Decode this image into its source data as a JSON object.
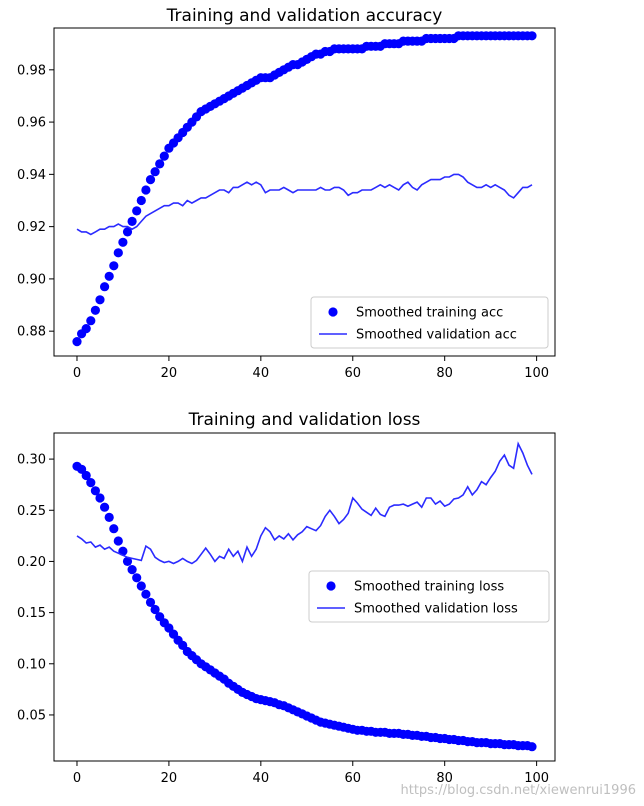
{
  "watermark": "https://blog.csdn.net/xiewenrui1996",
  "colors": {
    "points": "#0000ff",
    "line": "#2b2bff",
    "axis": "#000000",
    "legend_border": "#cccccc"
  },
  "chart_data": [
    {
      "type": "scatter+line",
      "title": "Training and validation accuracy",
      "xlabel": "",
      "ylabel": "",
      "xlim": [
        -5,
        104
      ],
      "ylim": [
        0.8705,
        0.996
      ],
      "xticks": [
        0,
        20,
        40,
        60,
        80,
        100
      ],
      "xtick_labels": [
        "0",
        "20",
        "40",
        "60",
        "80",
        "100"
      ],
      "yticks": [
        0.88,
        0.9,
        0.92,
        0.94,
        0.96,
        0.98
      ],
      "ytick_labels": [
        "0.88",
        "0.90",
        "0.92",
        "0.94",
        "0.96",
        "0.98"
      ],
      "legend": "lower right",
      "series": [
        {
          "name": "Smoothed training acc",
          "kind": "points",
          "x": [
            0,
            1,
            2,
            3,
            4,
            5,
            6,
            7,
            8,
            9,
            10,
            11,
            12,
            13,
            14,
            15,
            16,
            17,
            18,
            19,
            20,
            21,
            22,
            23,
            24,
            25,
            26,
            27,
            28,
            29,
            30,
            31,
            32,
            33,
            34,
            35,
            36,
            37,
            38,
            39,
            40,
            41,
            42,
            43,
            44,
            45,
            46,
            47,
            48,
            49,
            50,
            51,
            52,
            53,
            54,
            55,
            56,
            57,
            58,
            59,
            60,
            61,
            62,
            63,
            64,
            65,
            66,
            67,
            68,
            69,
            70,
            71,
            72,
            73,
            74,
            75,
            76,
            77,
            78,
            79,
            80,
            81,
            82,
            83,
            84,
            85,
            86,
            87,
            88,
            89,
            90,
            91,
            92,
            93,
            94,
            95,
            96,
            97,
            98,
            99
          ],
          "y": [
            0.876,
            0.879,
            0.881,
            0.884,
            0.888,
            0.892,
            0.897,
            0.901,
            0.905,
            0.91,
            0.914,
            0.918,
            0.922,
            0.926,
            0.93,
            0.934,
            0.938,
            0.941,
            0.944,
            0.947,
            0.95,
            0.952,
            0.954,
            0.956,
            0.958,
            0.96,
            0.962,
            0.964,
            0.965,
            0.966,
            0.967,
            0.968,
            0.969,
            0.97,
            0.971,
            0.972,
            0.973,
            0.974,
            0.975,
            0.976,
            0.977,
            0.977,
            0.977,
            0.978,
            0.979,
            0.98,
            0.981,
            0.982,
            0.982,
            0.983,
            0.984,
            0.985,
            0.986,
            0.986,
            0.987,
            0.987,
            0.988,
            0.988,
            0.988,
            0.988,
            0.988,
            0.988,
            0.988,
            0.989,
            0.989,
            0.989,
            0.989,
            0.99,
            0.99,
            0.99,
            0.99,
            0.991,
            0.991,
            0.991,
            0.991,
            0.991,
            0.992,
            0.992,
            0.992,
            0.992,
            0.992,
            0.992,
            0.992,
            0.993,
            0.993,
            0.993,
            0.993,
            0.993,
            0.993,
            0.993,
            0.993,
            0.993,
            0.993,
            0.993,
            0.993,
            0.993,
            0.993,
            0.993,
            0.993,
            0.993
          ]
        },
        {
          "name": "Smoothed validation acc",
          "kind": "line",
          "x": [
            0,
            1,
            2,
            3,
            4,
            5,
            6,
            7,
            8,
            9,
            10,
            11,
            12,
            13,
            14,
            15,
            16,
            17,
            18,
            19,
            20,
            21,
            22,
            23,
            24,
            25,
            26,
            27,
            28,
            29,
            30,
            31,
            32,
            33,
            34,
            35,
            36,
            37,
            38,
            39,
            40,
            41,
            42,
            43,
            44,
            45,
            46,
            47,
            48,
            49,
            50,
            51,
            52,
            53,
            54,
            55,
            56,
            57,
            58,
            59,
            60,
            61,
            62,
            63,
            64,
            65,
            66,
            67,
            68,
            69,
            70,
            71,
            72,
            73,
            74,
            75,
            76,
            77,
            78,
            79,
            80,
            81,
            82,
            83,
            84,
            85,
            86,
            87,
            88,
            89,
            90,
            91,
            92,
            93,
            94,
            95,
            96,
            97,
            98,
            99
          ],
          "y": [
            0.919,
            0.918,
            0.918,
            0.917,
            0.918,
            0.919,
            0.919,
            0.92,
            0.92,
            0.921,
            0.92,
            0.92,
            0.919,
            0.92,
            0.922,
            0.924,
            0.925,
            0.926,
            0.927,
            0.928,
            0.928,
            0.929,
            0.929,
            0.928,
            0.93,
            0.929,
            0.93,
            0.931,
            0.931,
            0.932,
            0.933,
            0.934,
            0.934,
            0.933,
            0.935,
            0.935,
            0.936,
            0.937,
            0.936,
            0.937,
            0.936,
            0.933,
            0.934,
            0.934,
            0.934,
            0.935,
            0.934,
            0.933,
            0.934,
            0.934,
            0.934,
            0.934,
            0.934,
            0.935,
            0.934,
            0.934,
            0.935,
            0.935,
            0.934,
            0.932,
            0.933,
            0.933,
            0.934,
            0.934,
            0.934,
            0.935,
            0.936,
            0.935,
            0.936,
            0.935,
            0.934,
            0.936,
            0.937,
            0.935,
            0.934,
            0.936,
            0.937,
            0.938,
            0.938,
            0.938,
            0.939,
            0.939,
            0.94,
            0.94,
            0.939,
            0.937,
            0.936,
            0.935,
            0.935,
            0.936,
            0.935,
            0.936,
            0.935,
            0.934,
            0.932,
            0.931,
            0.933,
            0.935,
            0.935,
            0.936
          ]
        }
      ]
    },
    {
      "type": "scatter+line",
      "title": "Training and validation loss",
      "xlabel": "",
      "ylabel": "",
      "xlim": [
        -5,
        104
      ],
      "ylim": [
        0.005,
        0.3255
      ],
      "xticks": [
        0,
        20,
        40,
        60,
        80,
        100
      ],
      "xtick_labels": [
        "0",
        "20",
        "40",
        "60",
        "80",
        "100"
      ],
      "yticks": [
        0.05,
        0.1,
        0.15,
        0.2,
        0.25,
        0.3
      ],
      "ytick_labels": [
        "0.05",
        "0.10",
        "0.15",
        "0.20",
        "0.25",
        "0.30"
      ],
      "legend": "center right",
      "series": [
        {
          "name": "Smoothed training loss",
          "kind": "points",
          "x": [
            0,
            1,
            2,
            3,
            4,
            5,
            6,
            7,
            8,
            9,
            10,
            11,
            12,
            13,
            14,
            15,
            16,
            17,
            18,
            19,
            20,
            21,
            22,
            23,
            24,
            25,
            26,
            27,
            28,
            29,
            30,
            31,
            32,
            33,
            34,
            35,
            36,
            37,
            38,
            39,
            40,
            41,
            42,
            43,
            44,
            45,
            46,
            47,
            48,
            49,
            50,
            51,
            52,
            53,
            54,
            55,
            56,
            57,
            58,
            59,
            60,
            61,
            62,
            63,
            64,
            65,
            66,
            67,
            68,
            69,
            70,
            71,
            72,
            73,
            74,
            75,
            76,
            77,
            78,
            79,
            80,
            81,
            82,
            83,
            84,
            85,
            86,
            87,
            88,
            89,
            90,
            91,
            92,
            93,
            94,
            95,
            96,
            97,
            98,
            99
          ],
          "y": [
            0.293,
            0.29,
            0.284,
            0.277,
            0.269,
            0.262,
            0.253,
            0.243,
            0.232,
            0.22,
            0.21,
            0.2,
            0.192,
            0.184,
            0.176,
            0.168,
            0.16,
            0.153,
            0.146,
            0.14,
            0.135,
            0.129,
            0.123,
            0.118,
            0.112,
            0.108,
            0.104,
            0.1,
            0.097,
            0.094,
            0.091,
            0.088,
            0.085,
            0.081,
            0.078,
            0.075,
            0.072,
            0.07,
            0.068,
            0.066,
            0.065,
            0.064,
            0.063,
            0.062,
            0.06,
            0.059,
            0.057,
            0.055,
            0.053,
            0.051,
            0.049,
            0.047,
            0.045,
            0.043,
            0.042,
            0.041,
            0.04,
            0.039,
            0.038,
            0.037,
            0.036,
            0.035,
            0.035,
            0.034,
            0.034,
            0.033,
            0.033,
            0.033,
            0.032,
            0.032,
            0.032,
            0.031,
            0.031,
            0.03,
            0.03,
            0.029,
            0.029,
            0.028,
            0.028,
            0.027,
            0.027,
            0.026,
            0.026,
            0.025,
            0.025,
            0.024,
            0.024,
            0.023,
            0.023,
            0.023,
            0.022,
            0.022,
            0.022,
            0.021,
            0.021,
            0.021,
            0.02,
            0.02,
            0.02,
            0.019
          ]
        },
        {
          "name": "Smoothed validation loss",
          "kind": "line",
          "x": [
            0,
            1,
            2,
            3,
            4,
            5,
            6,
            7,
            8,
            9,
            10,
            11,
            12,
            13,
            14,
            15,
            16,
            17,
            18,
            19,
            20,
            21,
            22,
            23,
            24,
            25,
            26,
            27,
            28,
            29,
            30,
            31,
            32,
            33,
            34,
            35,
            36,
            37,
            38,
            39,
            40,
            41,
            42,
            43,
            44,
            45,
            46,
            47,
            48,
            49,
            50,
            51,
            52,
            53,
            54,
            55,
            56,
            57,
            58,
            59,
            60,
            61,
            62,
            63,
            64,
            65,
            66,
            67,
            68,
            69,
            70,
            71,
            72,
            73,
            74,
            75,
            76,
            77,
            78,
            79,
            80,
            81,
            82,
            83,
            84,
            85,
            86,
            87,
            88,
            89,
            90,
            91,
            92,
            93,
            94,
            95,
            96,
            97,
            98,
            99
          ],
          "y": [
            0.225,
            0.222,
            0.218,
            0.219,
            0.214,
            0.216,
            0.212,
            0.214,
            0.21,
            0.208,
            0.206,
            0.204,
            0.203,
            0.202,
            0.201,
            0.215,
            0.212,
            0.204,
            0.201,
            0.199,
            0.2,
            0.198,
            0.2,
            0.203,
            0.2,
            0.198,
            0.201,
            0.207,
            0.213,
            0.207,
            0.2,
            0.205,
            0.203,
            0.212,
            0.205,
            0.21,
            0.2,
            0.214,
            0.205,
            0.212,
            0.225,
            0.233,
            0.229,
            0.221,
            0.225,
            0.222,
            0.227,
            0.221,
            0.226,
            0.229,
            0.234,
            0.232,
            0.23,
            0.235,
            0.244,
            0.25,
            0.244,
            0.237,
            0.241,
            0.247,
            0.262,
            0.257,
            0.251,
            0.248,
            0.245,
            0.252,
            0.246,
            0.244,
            0.253,
            0.255,
            0.255,
            0.256,
            0.254,
            0.256,
            0.258,
            0.253,
            0.262,
            0.262,
            0.256,
            0.259,
            0.254,
            0.256,
            0.261,
            0.262,
            0.265,
            0.273,
            0.265,
            0.27,
            0.278,
            0.275,
            0.282,
            0.288,
            0.298,
            0.304,
            0.294,
            0.291,
            0.315,
            0.306,
            0.294,
            0.285
          ]
        }
      ]
    }
  ]
}
